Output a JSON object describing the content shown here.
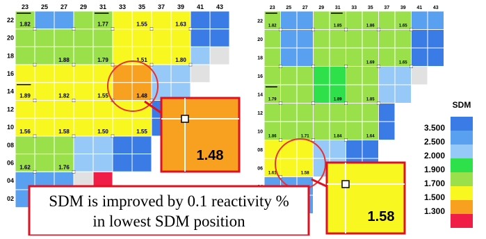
{
  "colors": {
    "c35": "#3a7be6",
    "c25": "#5aa0f0",
    "c20": "#96c8f8",
    "c19": "#2ee04a",
    "c17": "#9ae04a",
    "c15": "#f8f820",
    "c13": "#f8a020",
    "c12": "#f01e46",
    "empty": "#e1e1e1",
    "highlight": "#e83030",
    "arrow": "#e01020"
  },
  "left_map": {
    "x_labels": [
      "23",
      "25",
      "27",
      "29",
      "31",
      "33",
      "35",
      "37",
      "39",
      "41",
      "43"
    ],
    "y_labels": [
      "22",
      "20",
      "18",
      "16",
      "14",
      "12",
      "10",
      "08",
      "06",
      "04",
      "02"
    ],
    "rows": [
      [
        "c17",
        "c25",
        "c25",
        "c17",
        "c17",
        "c15",
        "c15",
        "c15",
        "c15",
        "c35",
        "c35"
      ],
      [
        "c17",
        "c17",
        "c17",
        "c17",
        "c17",
        "c15",
        "c15",
        "c15",
        "c15",
        "c35",
        "c35"
      ],
      [
        "c17",
        "c17",
        "c17",
        "c17",
        "c17",
        "c15",
        "c15",
        "c15",
        "c15",
        "c20",
        "empty"
      ],
      [
        "c15",
        "c15",
        "c15",
        "c15",
        "c15",
        "c13",
        "c13",
        "c20",
        "c20",
        "empty",
        ""
      ],
      [
        "c15",
        "c15",
        "c15",
        "c15",
        "c15",
        "c13",
        "c13",
        "c20",
        "c20",
        "",
        ""
      ],
      [
        "c15",
        "c15",
        "c15",
        "c15",
        "c15",
        "c15",
        "c15",
        "c35",
        "",
        "",
        ""
      ],
      [
        "c15",
        "c15",
        "c15",
        "c15",
        "c15",
        "c15",
        "c15",
        "c35",
        "",
        "",
        ""
      ],
      [
        "c17",
        "c17",
        "c17",
        "c20",
        "c20",
        "c35",
        "c35",
        "",
        "",
        "",
        ""
      ],
      [
        "c17",
        "c17",
        "c17",
        "c20",
        "c20",
        "c35",
        "c35",
        "",
        "",
        "",
        ""
      ],
      [
        "c25",
        "c25",
        "c25",
        "empty",
        "c12",
        "",
        "",
        "",
        "",
        "",
        ""
      ],
      [
        "c25",
        "c25",
        "c25",
        "",
        "",
        "",
        "",
        "",
        "",
        "",
        ""
      ]
    ],
    "values": [
      {
        "text": "1.82",
        "col": 0,
        "row": 0
      },
      {
        "text": "1.77",
        "col": 4,
        "row": 0
      },
      {
        "text": "1.55",
        "col": 6,
        "row": 0
      },
      {
        "text": "1.63",
        "col": 8,
        "row": 0
      },
      {
        "text": "1.88",
        "col": 2,
        "row": 2
      },
      {
        "text": "1.79",
        "col": 4,
        "row": 2
      },
      {
        "text": "1.51",
        "col": 6,
        "row": 2
      },
      {
        "text": "1.80",
        "col": 8,
        "row": 2
      },
      {
        "text": "1.89",
        "col": 0,
        "row": 4
      },
      {
        "text": "1.82",
        "col": 2,
        "row": 4
      },
      {
        "text": "1.55",
        "col": 4,
        "row": 4
      },
      {
        "text": "1.48",
        "col": 6,
        "row": 4
      },
      {
        "text": "1.56",
        "col": 0,
        "row": 6
      },
      {
        "text": "1.58",
        "col": 2,
        "row": 6
      },
      {
        "text": "1.50",
        "col": 4,
        "row": 6
      },
      {
        "text": "1.55",
        "col": 6,
        "row": 6
      },
      {
        "text": "1.62",
        "col": 0,
        "row": 8
      },
      {
        "text": "1.76",
        "col": 2,
        "row": 8
      }
    ],
    "zoom_value": "1.48"
  },
  "right_map": {
    "x_labels": [
      "23",
      "25",
      "27",
      "29",
      "31",
      "33",
      "35",
      "37",
      "39",
      "41",
      "43"
    ],
    "y_labels": [
      "22",
      "20",
      "18",
      "16",
      "14",
      "12",
      "10",
      "08",
      "06",
      "04",
      "02"
    ],
    "rows": [
      [
        "c17",
        "c25",
        "c25",
        "c17",
        "c17",
        "c17",
        "c17",
        "c17",
        "c17",
        "c25",
        "c25"
      ],
      [
        "c17",
        "c25",
        "c25",
        "c17",
        "c17",
        "c17",
        "c17",
        "c17",
        "c17",
        "c35",
        "c35"
      ],
      [
        "c17",
        "c25",
        "c25",
        "c17",
        "c17",
        "c17",
        "c17",
        "c17",
        "c17",
        "c35",
        "c35"
      ],
      [
        "c17",
        "c17",
        "c17",
        "c19",
        "c19",
        "c17",
        "c17",
        "c20",
        "c20",
        "empty",
        ""
      ],
      [
        "c17",
        "c17",
        "c17",
        "c19",
        "c19",
        "c17",
        "c17",
        "c20",
        "c20",
        "",
        ""
      ],
      [
        "c17",
        "c17",
        "c17",
        "c17",
        "c17",
        "c17",
        "c17",
        "c35",
        "",
        "",
        ""
      ],
      [
        "c17",
        "c17",
        "c17",
        "c17",
        "c17",
        "c17",
        "c17",
        "c35",
        "",
        "",
        ""
      ],
      [
        "c15",
        "c15",
        "c15",
        "c20",
        "c20",
        "c35",
        "c35",
        "",
        "",
        "",
        ""
      ],
      [
        "c15",
        "c15",
        "c15",
        "c20",
        "c20",
        "c35",
        "c35",
        "",
        "",
        "",
        ""
      ],
      [
        "c25",
        "c25",
        "c25",
        "",
        "",
        "",
        "",
        "",
        "",
        "",
        ""
      ],
      [
        "c25",
        "c25",
        "c25",
        "",
        "",
        "",
        "",
        "",
        "",
        "",
        ""
      ]
    ],
    "values": [
      {
        "text": "1.82",
        "col": 0,
        "row": 0
      },
      {
        "text": "1.85",
        "col": 4,
        "row": 0
      },
      {
        "text": "1.86",
        "col": 6,
        "row": 0
      },
      {
        "text": "1.65",
        "col": 8,
        "row": 0
      },
      {
        "text": "1.69",
        "col": 6,
        "row": 2
      },
      {
        "text": "1.65",
        "col": 8,
        "row": 2
      },
      {
        "text": "1.79",
        "col": 0,
        "row": 4
      },
      {
        "text": "1.89",
        "col": 4,
        "row": 4
      },
      {
        "text": "1.85",
        "col": 6,
        "row": 4
      },
      {
        "text": "1.86",
        "col": 0,
        "row": 6
      },
      {
        "text": "1.71",
        "col": 2,
        "row": 6
      },
      {
        "text": "1.84",
        "col": 4,
        "row": 6
      },
      {
        "text": "1.64",
        "col": 6,
        "row": 6
      },
      {
        "text": "1.61",
        "col": 0,
        "row": 8
      },
      {
        "text": "1.58",
        "col": 2,
        "row": 8
      }
    ],
    "zoom_value": "1.58"
  },
  "legend": {
    "title": "SDM",
    "items": [
      {
        "label": "3.500",
        "color": "#3a7be6"
      },
      {
        "label": "2.500",
        "color": "#5aa0f0"
      },
      {
        "label": "2.000",
        "color": "#96c8f8"
      },
      {
        "label": "1.900",
        "color": "#2ee04a"
      },
      {
        "label": "1.700",
        "color": "#9ae04a"
      },
      {
        "label": "1.500",
        "color": "#f8f820"
      },
      {
        "label": "1.300",
        "color": "#f8a020"
      },
      {
        "label": "",
        "color": "#f01e46"
      }
    ]
  },
  "caption": {
    "line1": "SDM is improved by 0.1 reactivity %",
    "line2": "in lowest SDM position"
  }
}
